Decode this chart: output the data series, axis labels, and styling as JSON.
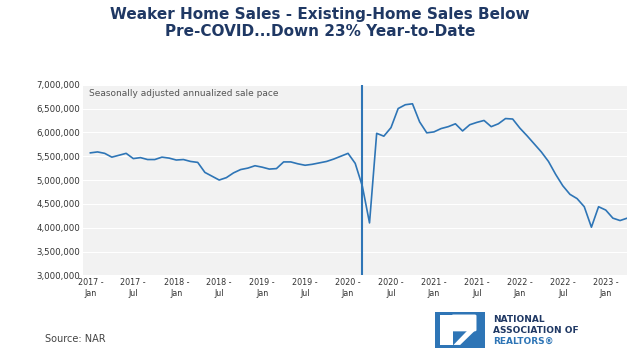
{
  "title": "Weaker Home Sales - Existing-Home Sales Below\nPre-COVID...Down 23% Year-to-Date",
  "subtitle": "Seasonally adjusted annualized sale pace",
  "source": "Source: NAR",
  "line_color": "#2E75B6",
  "vline_color": "#2E75B6",
  "background_color": "#FFFFFF",
  "plot_bg_color": "#F2F2F2",
  "grid_color": "#FFFFFF",
  "title_color": "#1F3864",
  "ylim": [
    3000000,
    7000000
  ],
  "yticks": [
    3000000,
    3500000,
    4000000,
    4500000,
    5000000,
    5500000,
    6000000,
    6500000,
    7000000
  ],
  "vline_x": 38,
  "xtick_labels": [
    "2017 -\nJan",
    "2017 -\nJul",
    "2018 -\nJan",
    "2018 -\nJul",
    "2019 -\nJan",
    "2019 -\nJul",
    "2020 -\nJan",
    "2020 -\nJul",
    "2021 -\nJan",
    "2021 -\nJul",
    "2022 -\nJan",
    "2022 -\nJul",
    "2023 -\nJan"
  ],
  "xtick_positions": [
    0,
    6,
    12,
    18,
    24,
    30,
    36,
    42,
    48,
    54,
    60,
    66,
    72
  ],
  "data": [
    5570000,
    5590000,
    5560000,
    5480000,
    5520000,
    5560000,
    5450000,
    5470000,
    5430000,
    5430000,
    5480000,
    5460000,
    5420000,
    5430000,
    5390000,
    5370000,
    5160000,
    5080000,
    5000000,
    5050000,
    5150000,
    5220000,
    5250000,
    5300000,
    5270000,
    5230000,
    5240000,
    5380000,
    5380000,
    5340000,
    5310000,
    5330000,
    5360000,
    5390000,
    5440000,
    5500000,
    5560000,
    5350000,
    4870000,
    4100000,
    5980000,
    5920000,
    6100000,
    6500000,
    6580000,
    6600000,
    6220000,
    5990000,
    6010000,
    6080000,
    6120000,
    6180000,
    6030000,
    6160000,
    6210000,
    6250000,
    6120000,
    6180000,
    6290000,
    6280000,
    6090000,
    5930000,
    5760000,
    5590000,
    5390000,
    5120000,
    4880000,
    4700000,
    4610000,
    4440000,
    4010000,
    4440000,
    4370000,
    4200000,
    4150000,
    4200000
  ],
  "nar_logo_color": "#2E75B6",
  "nar_text_color": "#1F3864",
  "nar_realtors_color": "#2E75B6"
}
